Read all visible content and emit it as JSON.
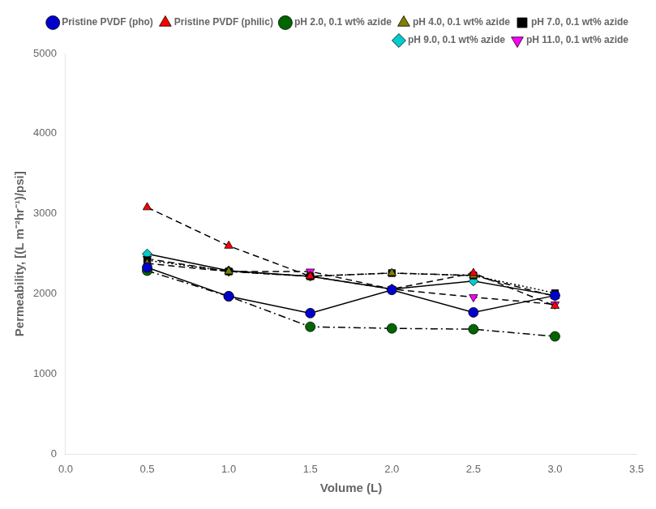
{
  "chart_data": {
    "type": "line",
    "x": [
      0.5,
      1.0,
      1.5,
      2.0,
      2.5,
      3.0
    ],
    "series": [
      {
        "name": "Pristine PVDF (pho)",
        "color": "#0000CC",
        "marker": "circle",
        "line_style": "solid",
        "values": [
          2330,
          1970,
          1760,
          2050,
          1770,
          1980
        ]
      },
      {
        "name": "Pristine PVDF (philic)",
        "color": "#FF0000",
        "marker": "triangle-up",
        "line_style": "dashed",
        "values": [
          3080,
          2600,
          2220,
          2060,
          2260,
          1850
        ]
      },
      {
        "name": "pH 2.0, 0.1 wt% azide",
        "color": "#006600",
        "marker": "circle",
        "line_style": "dashdot",
        "values": [
          2290,
          1970,
          1590,
          1570,
          1560,
          1470
        ]
      },
      {
        "name": "pH 4.0, 0.1 wt% azide",
        "color": "#808000",
        "marker": "triangle-up",
        "line_style": "dashed",
        "values": [
          2380,
          2280,
          2220,
          2260,
          2230,
          1970
        ]
      },
      {
        "name": "pH 7.0, 0.1 wt% azide",
        "color": "#000000",
        "marker": "square",
        "line_style": "dotted",
        "values": [
          2420,
          2280,
          2220,
          2260,
          2230,
          2010
        ]
      },
      {
        "name": "pH 9.0, 0.1 wt% azide",
        "color": "#00CCCC",
        "marker": "diamond",
        "line_style": "solid",
        "values": [
          2500,
          2290,
          2220,
          2060,
          2160,
          1980
        ]
      },
      {
        "name": "pH 11.0, 0.1 wt% azide",
        "color": "#FF00FF",
        "marker": "triangle-down",
        "line_style": "dashed",
        "values": [
          2440,
          2280,
          2280,
          2060,
          1960,
          1870
        ]
      }
    ],
    "xlabel": "Volume (L)",
    "ylabel": "Permeability, [(L m⁻²hr⁻¹)/psi]",
    "xlim": [
      0.0,
      3.5
    ],
    "ylim": [
      0,
      5000
    ],
    "xticks": [
      {
        "value": 0.0,
        "label": "0.0"
      },
      0.5,
      {
        "value": 1.0,
        "label": "1.0"
      },
      1.5,
      {
        "value": 2.0,
        "label": "2.0"
      },
      2.5,
      {
        "value": 3.0,
        "label": "3.0"
      },
      3.5
    ],
    "yticks": [
      0,
      1000,
      2000,
      3000,
      4000,
      5000
    ],
    "grid": false,
    "legend": "upper right"
  }
}
